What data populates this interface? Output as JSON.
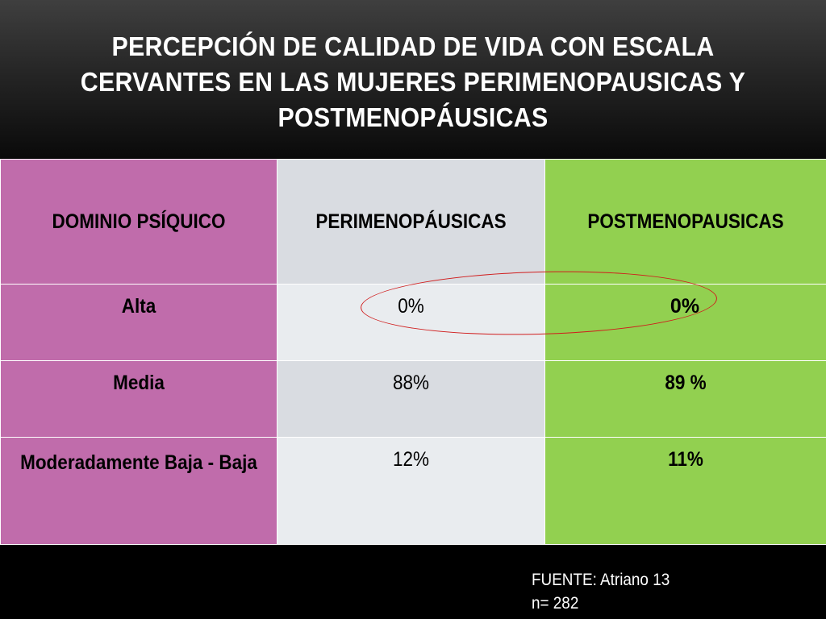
{
  "slide": {
    "title": "PERCEPCIÓN DE CALIDAD DE VIDA CON ESCALA CERVANTES  EN LAS MUJERES  PERIMENOPAUSICAS Y POSTMENOPÁUSICAS"
  },
  "table": {
    "headers": [
      "DOMINIO  PSÍQUICO",
      "PERIMENOPÁUSICAS",
      "POSTMENOPAUSICAS"
    ],
    "rows": [
      {
        "label": "Alta",
        "peri": "0%",
        "post": "0%"
      },
      {
        "label": "Media",
        "peri": "88%",
        "post": "89 %"
      },
      {
        "label": "Moderadamente Baja - Baja",
        "peri": "12%",
        "post": "11%"
      }
    ]
  },
  "source": {
    "line1": "FUENTE: Atriano 13",
    "line2": "n= 282"
  },
  "colors": {
    "background": "#000000",
    "domain_column": "#c06cab",
    "peri_column": "#e9ecef",
    "post_column": "#92d050",
    "highlight_ellipse": "#d01c1c",
    "title_text": "#ffffff"
  }
}
